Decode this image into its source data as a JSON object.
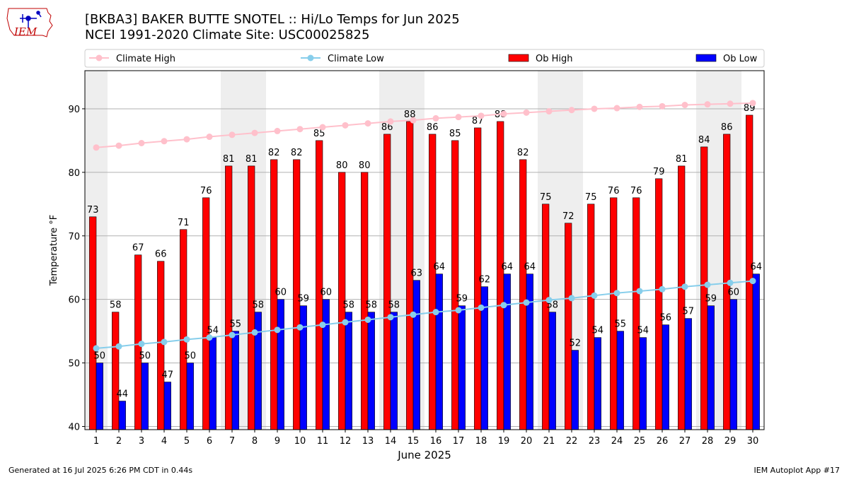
{
  "logo": {
    "text": "IEM"
  },
  "header": {
    "title_line1": "[BKBA3] BAKER BUTTE SNOTEL :: Hi/Lo Temps for Jun 2025",
    "title_line2": "NCEI 1991-2020 Climate Site: USC00025825"
  },
  "footer": {
    "generated": "Generated at 16 Jul 2025 6:26 PM CDT in 0.44s",
    "app": "IEM Autoplot App #17"
  },
  "colors": {
    "ob_high": "#ff0000",
    "ob_low": "#0000ff",
    "climate_high": "#ffc0cb",
    "climate_low": "#87ceeb",
    "weekend_shade": "#eeeeee"
  },
  "chart_data": {
    "type": "bar",
    "xlabel": "June 2025",
    "ylabel": "Temperature °F",
    "ylim": [
      39.5,
      96
    ],
    "yticks": [
      40,
      50,
      60,
      70,
      80,
      90
    ],
    "grid": true,
    "legend_position": "top",
    "x": [
      1,
      2,
      3,
      4,
      5,
      6,
      7,
      8,
      9,
      10,
      11,
      12,
      13,
      14,
      15,
      16,
      17,
      18,
      19,
      20,
      21,
      22,
      23,
      24,
      25,
      26,
      27,
      28,
      29,
      30
    ],
    "shaded_days": [
      1,
      7,
      8,
      14,
      15,
      21,
      22,
      28,
      29
    ],
    "series": [
      {
        "name": "Climate High",
        "kind": "line",
        "values": [
          83.9,
          84.2,
          84.6,
          84.9,
          85.2,
          85.6,
          85.9,
          86.2,
          86.5,
          86.8,
          87.1,
          87.4,
          87.7,
          88.0,
          88.2,
          88.5,
          88.7,
          88.9,
          89.2,
          89.4,
          89.6,
          89.8,
          90.0,
          90.1,
          90.3,
          90.4,
          90.6,
          90.7,
          90.8,
          90.9
        ]
      },
      {
        "name": "Climate Low",
        "kind": "line",
        "values": [
          52.3,
          52.6,
          53.0,
          53.3,
          53.7,
          54.0,
          54.4,
          54.8,
          55.2,
          55.6,
          56.0,
          56.4,
          56.8,
          57.2,
          57.6,
          58.0,
          58.3,
          58.7,
          59.1,
          59.5,
          59.9,
          60.2,
          60.6,
          61.0,
          61.3,
          61.6,
          62.0,
          62.3,
          62.6,
          62.9
        ]
      },
      {
        "name": "Ob High",
        "kind": "bar",
        "values": [
          73,
          58,
          67,
          66,
          71,
          76,
          81,
          81,
          82,
          82,
          85,
          80,
          80,
          86,
          88,
          86,
          85,
          87,
          88,
          82,
          75,
          72,
          75,
          76,
          76,
          79,
          81,
          84,
          86,
          89
        ]
      },
      {
        "name": "Ob Low",
        "kind": "bar",
        "values": [
          50,
          44,
          50,
          47,
          50,
          54,
          55,
          58,
          60,
          59,
          60,
          58,
          58,
          58,
          63,
          64,
          59,
          62,
          64,
          64,
          58,
          52,
          54,
          55,
          54,
          56,
          57,
          59,
          60,
          64
        ]
      }
    ]
  }
}
